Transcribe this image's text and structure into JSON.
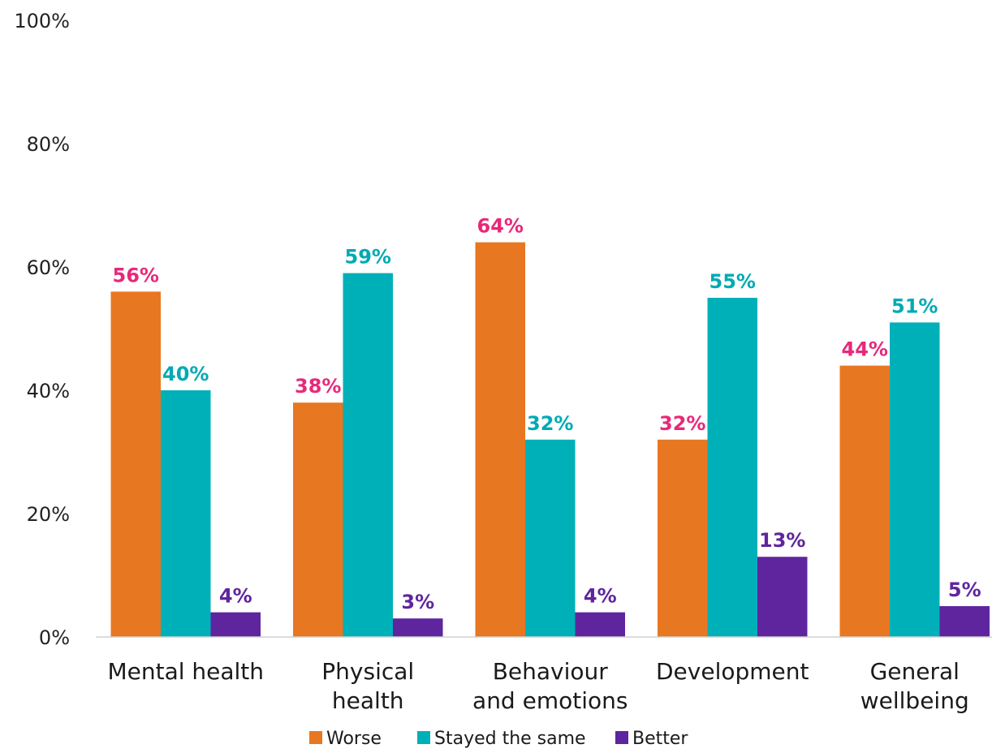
{
  "chart_data": {
    "type": "bar",
    "categories": [
      [
        "Mental health"
      ],
      [
        "Physical",
        "health"
      ],
      [
        "Behaviour",
        "and emotions"
      ],
      [
        "Development"
      ],
      [
        "General",
        "wellbeing"
      ]
    ],
    "series": [
      {
        "name": "Worse",
        "color": "#E87722",
        "label_color": "#E8287A",
        "values": [
          56,
          38,
          64,
          32,
          44
        ]
      },
      {
        "name": "Stayed the same",
        "color": "#00B0B9",
        "label_color": "#00AAB3",
        "values": [
          40,
          59,
          32,
          55,
          51
        ]
      },
      {
        "name": "Better",
        "color": "#5F259F",
        "label_color": "#5F259F",
        "values": [
          4,
          3,
          4,
          13,
          5
        ]
      }
    ],
    "value_suffix": "%",
    "ylim": [
      0,
      100
    ],
    "yticks": [
      0,
      20,
      40,
      60,
      80,
      100
    ],
    "ytick_labels": [
      "0%",
      "20%",
      "40%",
      "60%",
      "80%",
      "100%"
    ],
    "grid": false,
    "legend_position": "bottom"
  }
}
